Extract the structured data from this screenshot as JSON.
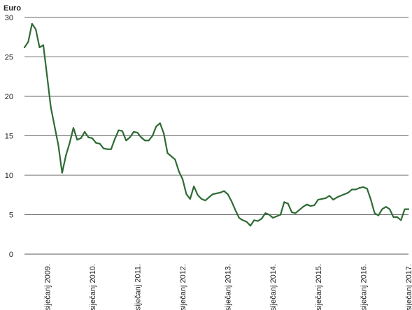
{
  "chart_data": {
    "type": "line",
    "title": "",
    "ylabel": "Euro",
    "xlabel": "",
    "ylim": [
      0,
      30
    ],
    "yticks": [
      0,
      5,
      10,
      15,
      20,
      25,
      30
    ],
    "xlim": [
      "2008-07",
      "2017-01"
    ],
    "grid": "horizontal",
    "x_tick_labels": [
      {
        "date": "2009-01",
        "label": "siječanj 2009."
      },
      {
        "date": "2010-01",
        "label": "siječanj 2010."
      },
      {
        "date": "2011-01",
        "label": "siječanj 2011."
      },
      {
        "date": "2012-01",
        "label": "siječanj 2012."
      },
      {
        "date": "2013-01",
        "label": "siječanj 2013."
      },
      {
        "date": "2014-01",
        "label": "siječanj 2014."
      },
      {
        "date": "2015-01",
        "label": "siječanj 2015."
      },
      {
        "date": "2016-01",
        "label": "siječanj 2016."
      },
      {
        "date": "2017-01",
        "label": "siječanj 2017."
      }
    ],
    "line_color": "#2e6b34",
    "series": [
      {
        "x": [
          "2008-07",
          "2008-08",
          "2008-09",
          "2008-10",
          "2008-11",
          "2008-12",
          "2009-01",
          "2009-02",
          "2009-03",
          "2009-04",
          "2009-05",
          "2009-06",
          "2009-07",
          "2009-08",
          "2009-09",
          "2009-10",
          "2009-11",
          "2009-12",
          "2010-01",
          "2010-02",
          "2010-03",
          "2010-04",
          "2010-05",
          "2010-06",
          "2010-07",
          "2010-08",
          "2010-09",
          "2010-10",
          "2010-11",
          "2010-12",
          "2011-01",
          "2011-02",
          "2011-03",
          "2011-04",
          "2011-05",
          "2011-06",
          "2011-07",
          "2011-08",
          "2011-09",
          "2011-10",
          "2011-11",
          "2011-12",
          "2012-01",
          "2012-02",
          "2012-03",
          "2012-04",
          "2012-05",
          "2012-06",
          "2012-07",
          "2012-08",
          "2012-09",
          "2012-10",
          "2012-11",
          "2012-12",
          "2013-01",
          "2013-02",
          "2013-03",
          "2013-04",
          "2013-05",
          "2013-06",
          "2013-07",
          "2013-08",
          "2013-09",
          "2013-10",
          "2013-11",
          "2013-12",
          "2014-01",
          "2014-02",
          "2014-03",
          "2014-04",
          "2014-05",
          "2014-06",
          "2014-07",
          "2014-08",
          "2014-09",
          "2014-10",
          "2014-11",
          "2014-12",
          "2015-01",
          "2015-02",
          "2015-03",
          "2015-04",
          "2015-05",
          "2015-06",
          "2015-07",
          "2015-08",
          "2015-09",
          "2015-10",
          "2015-11",
          "2015-12",
          "2016-01",
          "2016-02",
          "2016-03",
          "2016-04",
          "2016-05",
          "2016-06",
          "2016-07",
          "2016-08",
          "2016-09",
          "2016-10",
          "2016-11",
          "2016-12",
          "2017-01"
        ],
        "y": [
          26.2,
          26.9,
          29.2,
          28.5,
          26.2,
          26.5,
          22.6,
          18.6,
          16.2,
          13.8,
          10.3,
          12.5,
          14.1,
          16.0,
          14.5,
          14.7,
          15.5,
          14.8,
          14.7,
          14.1,
          14.0,
          13.4,
          13.3,
          13.3,
          14.6,
          15.7,
          15.6,
          14.4,
          14.8,
          15.5,
          15.4,
          14.8,
          14.4,
          14.4,
          15.0,
          16.2,
          16.6,
          15.3,
          12.8,
          12.4,
          12.0,
          10.5,
          9.5,
          7.6,
          7.0,
          8.6,
          7.5,
          7.0,
          6.8,
          7.2,
          7.6,
          7.7,
          7.8,
          8.0,
          7.6,
          6.7,
          5.6,
          4.6,
          4.3,
          4.1,
          3.6,
          4.3,
          4.2,
          4.5,
          5.2,
          5.0,
          4.6,
          4.8,
          5.0,
          6.6,
          6.4,
          5.3,
          5.2,
          5.6,
          6.0,
          6.3,
          6.1,
          6.2,
          6.9,
          7.0,
          7.1,
          7.4,
          6.9,
          7.2,
          7.4,
          7.6,
          7.8,
          8.2,
          8.2,
          8.4,
          8.5,
          8.3,
          6.9,
          5.2,
          4.9,
          5.7,
          6.0,
          5.7,
          4.7,
          4.7,
          4.3,
          5.7,
          5.7
        ]
      }
    ]
  }
}
